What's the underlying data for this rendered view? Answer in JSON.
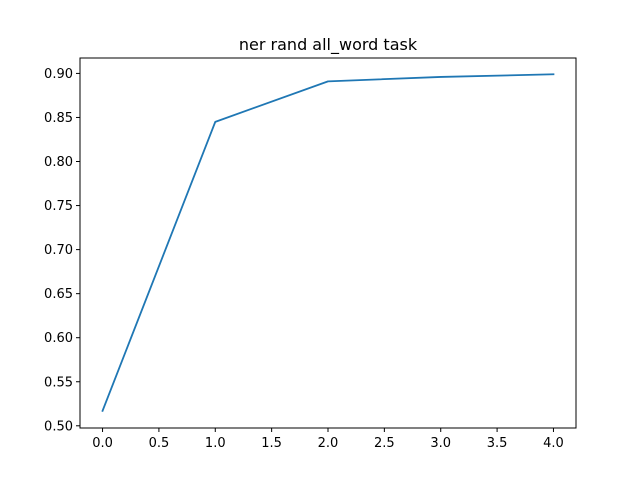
{
  "chart_data": {
    "type": "line",
    "title": "ner rand all_word task",
    "xlabel": "",
    "ylabel": "",
    "x": [
      0,
      1,
      2,
      3,
      4
    ],
    "series": [
      {
        "values": [
          0.517,
          0.845,
          0.891,
          0.896,
          0.899
        ],
        "color": "#1f77b4"
      }
    ],
    "xlim": [
      -0.2,
      4.2
    ],
    "ylim": [
      0.4975,
      0.9175
    ],
    "xticks": [
      0,
      0.5,
      1,
      1.5,
      2,
      2.5,
      3,
      3.5,
      4
    ],
    "xtick_labels": [
      "0.0",
      "0.5",
      "1.0",
      "1.5",
      "2.0",
      "2.5",
      "3.0",
      "3.5",
      "4.0"
    ],
    "yticks": [
      0.5,
      0.55,
      0.6,
      0.65,
      0.7,
      0.75,
      0.8,
      0.85,
      0.9
    ],
    "ytick_labels": [
      "0.50",
      "0.55",
      "0.60",
      "0.65",
      "0.70",
      "0.75",
      "0.80",
      "0.85",
      "0.90"
    ],
    "grid": false,
    "legend": "none"
  }
}
